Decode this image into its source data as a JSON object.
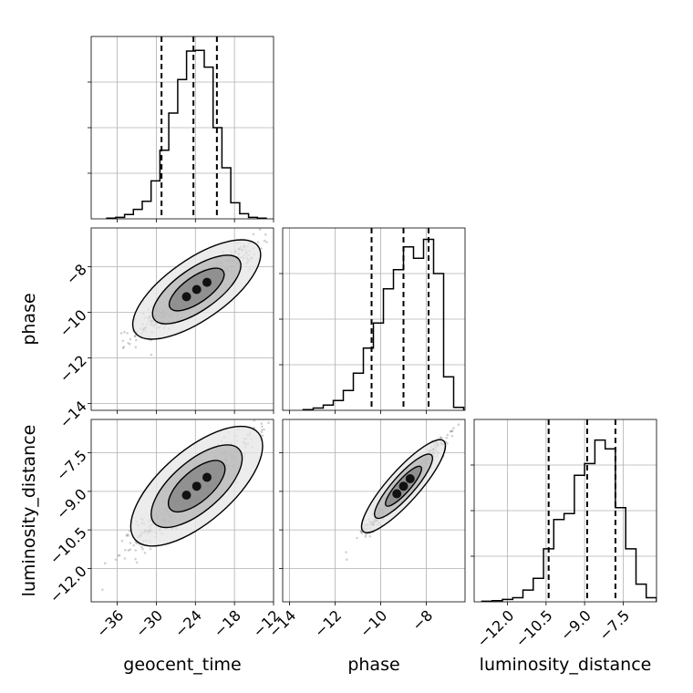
{
  "chart_data": {
    "type": "corner",
    "parameters": [
      "geocent_time",
      "phase",
      "luminosity_distance"
    ],
    "axes": {
      "geocent_time": {
        "range": [
          -40,
          -12
        ],
        "ticks": [
          -36,
          -30,
          -24,
          -18,
          -12
        ],
        "tick_labels": [
          "−36",
          "−30",
          "−24",
          "−18",
          "−12"
        ]
      },
      "phase": {
        "range": [
          -14.3,
          -6.3
        ],
        "ticks": [
          -14,
          -12,
          -10,
          -8
        ],
        "tick_labels": [
          "−14",
          "−12",
          "−10",
          "−8"
        ]
      },
      "luminosity_distance": {
        "range": [
          -13.3,
          -6.2
        ],
        "ticks": [
          -12.0,
          -10.5,
          -9.0,
          -7.5
        ],
        "tick_labels": [
          "−12.0",
          "−10.5",
          "−9.0",
          "−7.5"
        ]
      }
    },
    "histograms": {
      "geocent_time": {
        "bin_edges": [
          -37.6,
          -36.24,
          -34.88,
          -33.52,
          -32.16,
          -30.8,
          -29.44,
          -28.08,
          -26.72,
          -25.36,
          -24.0,
          -22.64,
          -21.28,
          -19.92,
          -18.56,
          -17.2,
          -15.84,
          -14.48,
          -13.12
        ],
        "counts": [
          1,
          2,
          6,
          13,
          24,
          52,
          94,
          145,
          191,
          230,
          231,
          208,
          125,
          70,
          22,
          7,
          2,
          1
        ],
        "ymax": 250,
        "quantiles": [
          -29.2,
          -24.3,
          -20.7
        ]
      },
      "phase": {
        "bin_edges": [
          -13.4,
          -12.96,
          -12.52,
          -12.08,
          -11.64,
          -11.2,
          -10.76,
          -10.32,
          -9.88,
          -9.44,
          -9.0,
          -8.56,
          -8.12,
          -7.68,
          -7.24,
          -6.8,
          -6.36
        ],
        "counts": [
          1,
          3,
          7,
          13,
          26,
          49,
          82,
          115,
          160,
          185,
          215,
          200,
          225,
          180,
          44,
          4
        ],
        "ymax": 240,
        "quantiles": [
          -10.4,
          -9.0,
          -7.9
        ]
      },
      "luminosity_distance": {
        "bin_edges": [
          -13.0,
          -12.6,
          -12.2,
          -11.8,
          -11.4,
          -11.0,
          -10.6,
          -10.2,
          -9.8,
          -9.4,
          -9.0,
          -8.6,
          -8.2,
          -7.8,
          -7.4,
          -7.0,
          -6.6,
          -6.2
        ],
        "counts": [
          1,
          2,
          4,
          7,
          20,
          40,
          90,
          140,
          150,
          215,
          235,
          275,
          260,
          160,
          90,
          30,
          7
        ],
        "ymax": 310,
        "quantiles": [
          -10.4,
          -8.9,
          -7.8
        ]
      }
    },
    "scatter_2d": [
      {
        "x": "geocent_time",
        "y": "phase",
        "slope": 0.2,
        "intercept": -4.2,
        "spread_along": 4.5,
        "spread_across": 0.35,
        "center": [
          -23.8,
          -9.0
        ]
      },
      {
        "x": "geocent_time",
        "y": "luminosity_distance",
        "slope": 0.22,
        "intercept": -3.5,
        "spread_along": 4.5,
        "spread_across": 0.4,
        "center": [
          -23.8,
          -8.8
        ]
      },
      {
        "x": "phase",
        "y": "luminosity_distance",
        "slope": 1.0,
        "intercept": 0.2,
        "spread_along": 1.2,
        "spread_across": 0.2,
        "center": [
          -9.0,
          -8.8
        ]
      }
    ]
  }
}
